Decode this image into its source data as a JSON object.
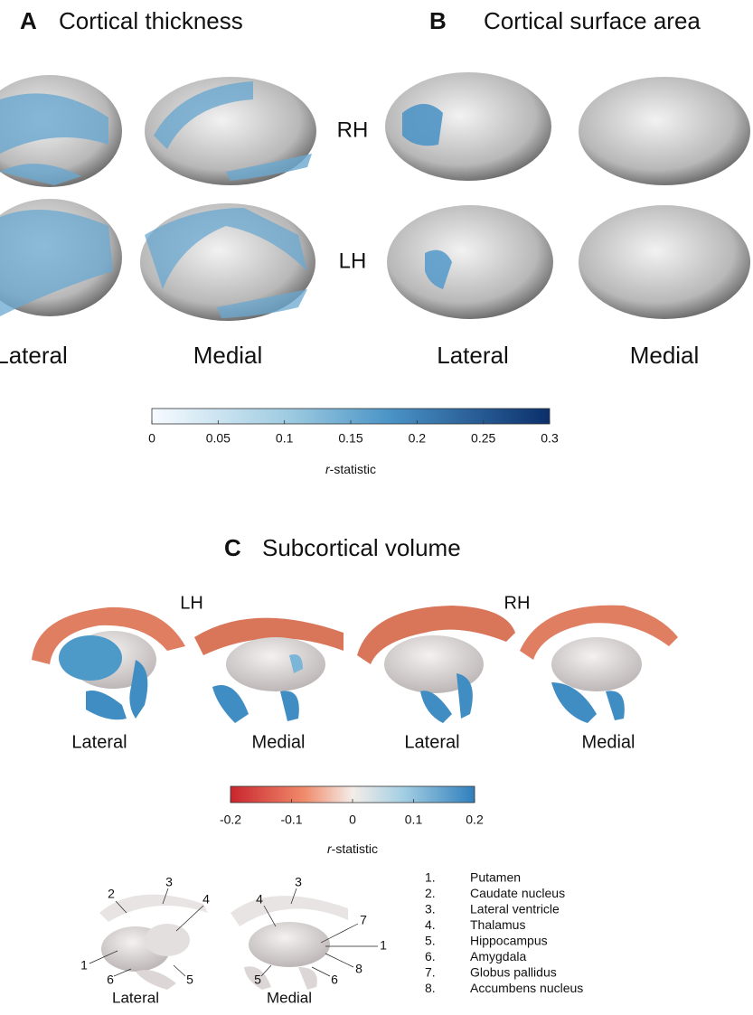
{
  "panels": {
    "A": {
      "letter": "A",
      "title": "Cortical thickness",
      "views": [
        "Lateral",
        "Medial"
      ]
    },
    "B": {
      "letter": "B",
      "title": "Cortical surface area",
      "views": [
        "Lateral",
        "Medial"
      ]
    },
    "C": {
      "letter": "C",
      "title": "Subcortical volume",
      "hemispheres": [
        "LH",
        "RH"
      ],
      "views": [
        "Lateral",
        "Medial",
        "Lateral",
        "Medial"
      ]
    }
  },
  "hemispheres": [
    "RH",
    "LH"
  ],
  "colorbar_cortical": {
    "lim": [
      0,
      0.3
    ],
    "ticks": [
      0,
      0.05,
      0.1,
      0.15,
      0.2,
      0.25,
      0.3
    ],
    "label_italic": "r",
    "label_rest": "-statistic"
  },
  "colorbar_subcortical": {
    "lim": [
      -0.2,
      0.2
    ],
    "ticks": [
      -0.2,
      -0.1,
      0,
      0.1,
      0.2
    ],
    "label_italic": "r",
    "label_rest": "-statistic"
  },
  "key": {
    "lateral": {
      "caption": "Lateral",
      "labels": [
        "2",
        "3",
        "4",
        "1",
        "6",
        "5"
      ]
    },
    "medial": {
      "caption": "Medial",
      "labels": [
        "4",
        "3",
        "7",
        "1",
        "8",
        "5",
        "6"
      ]
    },
    "list": [
      [
        "1.",
        "Putamen"
      ],
      [
        "2.",
        "Caudate nucleus"
      ],
      [
        "3.",
        "Lateral ventricle"
      ],
      [
        "4.",
        "Thalamus"
      ],
      [
        "5.",
        "Hippocampus"
      ],
      [
        "6.",
        "Amygdala"
      ],
      [
        "7.",
        "Globus pallidus"
      ],
      [
        "8.",
        "Accumbens nucleus"
      ]
    ]
  }
}
